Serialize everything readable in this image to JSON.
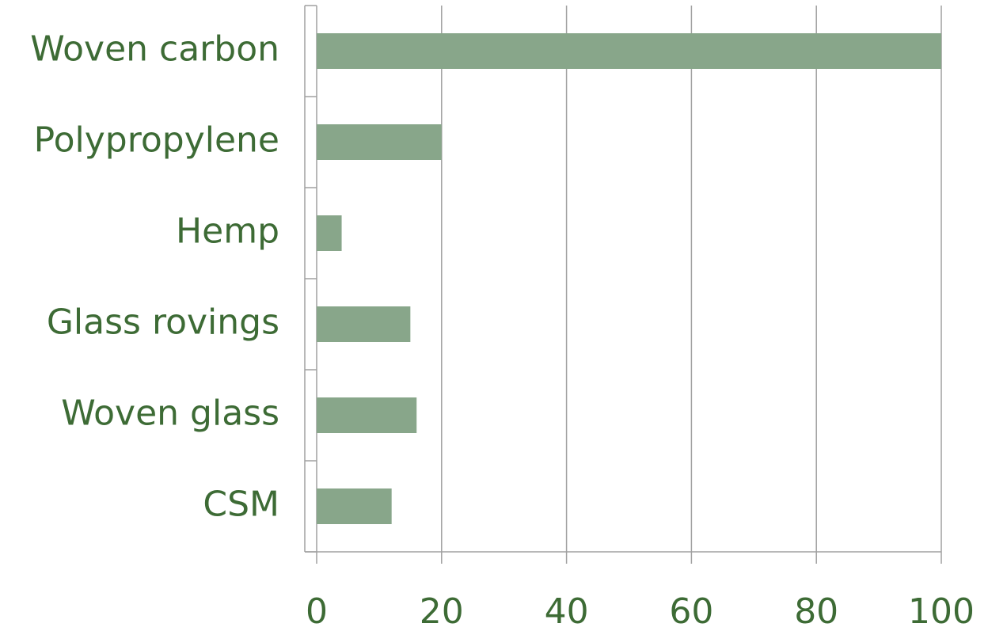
{
  "chart_data": {
    "type": "bar",
    "orientation": "horizontal",
    "categories": [
      "Woven carbon",
      "Polypropylene",
      "Hemp",
      "Glass rovings",
      "Woven glass",
      "CSM"
    ],
    "values": [
      100,
      20,
      4,
      15,
      16,
      12
    ],
    "color": "#88a68a",
    "xlim": [
      0,
      100
    ],
    "xticks": [
      0,
      20,
      40,
      60,
      80,
      100
    ],
    "grid": true
  }
}
